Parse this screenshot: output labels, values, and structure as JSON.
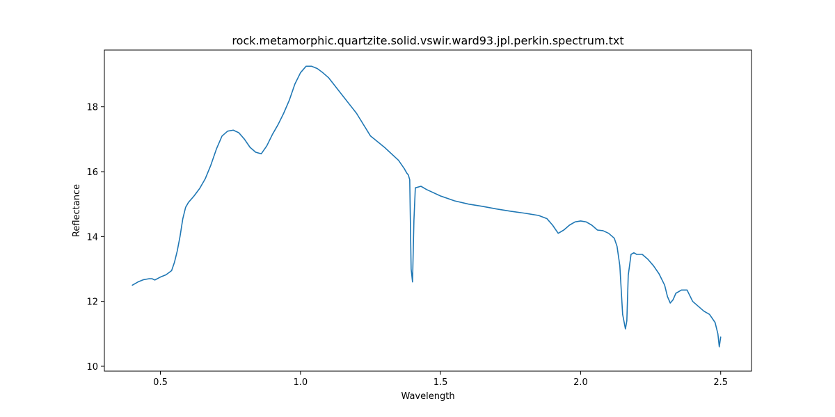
{
  "chart_data": {
    "type": "line",
    "title": "rock.metamorphic.quartzite.solid.vswir.ward93.jpl.perkin.spectrum.txt",
    "xlabel": "Wavelength",
    "ylabel": "Reflectance",
    "xlim": [
      0.3,
      2.61
    ],
    "ylim": [
      9.85,
      19.75
    ],
    "xticks": [
      0.5,
      1.0,
      1.5,
      2.0,
      2.5
    ],
    "xtick_labels": [
      "0.5",
      "1.0",
      "1.5",
      "2.0",
      "2.5"
    ],
    "yticks": [
      10,
      12,
      14,
      16,
      18
    ],
    "ytick_labels": [
      "10",
      "12",
      "14",
      "16",
      "18"
    ],
    "grid": false,
    "legend": "none",
    "line_color": "#1f77b4",
    "series": [
      {
        "x": [
          0.4,
          0.42,
          0.44,
          0.46,
          0.47,
          0.48,
          0.5,
          0.52,
          0.54,
          0.55,
          0.56,
          0.57,
          0.58,
          0.59,
          0.6,
          0.62,
          0.64,
          0.66,
          0.68,
          0.7,
          0.72,
          0.74,
          0.76,
          0.78,
          0.8,
          0.82,
          0.84,
          0.86,
          0.88,
          0.9,
          0.92,
          0.94,
          0.96,
          0.98,
          1.0,
          1.02,
          1.04,
          1.06,
          1.08,
          1.1,
          1.15,
          1.2,
          1.25,
          1.3,
          1.35,
          1.37,
          1.38,
          1.385,
          1.39,
          1.395,
          1.4,
          1.405,
          1.41,
          1.43,
          1.45,
          1.5,
          1.55,
          1.6,
          1.65,
          1.7,
          1.75,
          1.8,
          1.85,
          1.88,
          1.9,
          1.92,
          1.94,
          1.96,
          1.98,
          2.0,
          2.02,
          2.04,
          2.06,
          2.08,
          2.1,
          2.12,
          2.13,
          2.14,
          2.15,
          2.16,
          2.165,
          2.17,
          2.18,
          2.19,
          2.2,
          2.22,
          2.24,
          2.26,
          2.28,
          2.3,
          2.31,
          2.32,
          2.33,
          2.34,
          2.36,
          2.38,
          2.4,
          2.42,
          2.44,
          2.46,
          2.48,
          2.49,
          2.495,
          2.5
        ],
        "y": [
          12.5,
          12.6,
          12.67,
          12.7,
          12.7,
          12.66,
          12.75,
          12.82,
          12.95,
          13.2,
          13.55,
          14.0,
          14.55,
          14.9,
          15.05,
          15.25,
          15.48,
          15.78,
          16.2,
          16.7,
          17.1,
          17.25,
          17.28,
          17.2,
          17.0,
          16.75,
          16.6,
          16.55,
          16.8,
          17.15,
          17.45,
          17.8,
          18.2,
          18.7,
          19.05,
          19.25,
          19.25,
          19.18,
          19.05,
          18.9,
          18.35,
          17.8,
          17.1,
          16.75,
          16.35,
          16.1,
          15.95,
          15.9,
          15.75,
          13.0,
          12.6,
          14.5,
          15.5,
          15.55,
          15.45,
          15.25,
          15.1,
          15.0,
          14.93,
          14.85,
          14.78,
          14.72,
          14.65,
          14.55,
          14.35,
          14.1,
          14.2,
          14.35,
          14.45,
          14.48,
          14.45,
          14.35,
          14.2,
          14.18,
          14.1,
          13.95,
          13.7,
          13.1,
          11.6,
          11.15,
          11.4,
          12.8,
          13.45,
          13.5,
          13.45,
          13.45,
          13.3,
          13.1,
          12.85,
          12.5,
          12.15,
          11.95,
          12.05,
          12.25,
          12.35,
          12.35,
          12.0,
          11.85,
          11.7,
          11.6,
          11.35,
          11.0,
          10.6,
          10.9
        ]
      }
    ]
  }
}
